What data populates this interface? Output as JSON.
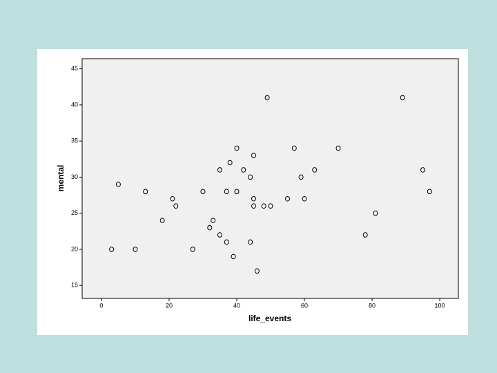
{
  "chart_data": {
    "type": "scatter",
    "x_label": "life_events",
    "y_label": "mental",
    "color": "#000000",
    "x": [
      3,
      5,
      10,
      13,
      18,
      21,
      22,
      27,
      30,
      32,
      33,
      35,
      35,
      37,
      37,
      38,
      39,
      40,
      40,
      42,
      44,
      44,
      45,
      45,
      45,
      46,
      48,
      49,
      50,
      55,
      57,
      59,
      60,
      63,
      70,
      78,
      81,
      89,
      95,
      97
    ],
    "values": [
      20,
      29,
      20,
      28,
      24,
      27,
      26,
      20,
      28,
      23,
      24,
      31,
      22,
      28,
      21,
      32,
      19,
      34,
      28,
      31,
      30,
      21,
      33,
      27,
      26,
      17,
      26,
      41,
      26,
      27,
      34,
      30,
      27,
      31,
      34,
      22,
      25,
      41,
      31,
      28
    ],
    "xlim": [
      -5.7,
      105.5
    ],
    "ylim": [
      13.2,
      46.4
    ],
    "xticks": [
      0,
      20,
      40,
      60,
      80,
      100
    ],
    "yticks": [
      15,
      20,
      25,
      30,
      35,
      40,
      45
    ]
  }
}
